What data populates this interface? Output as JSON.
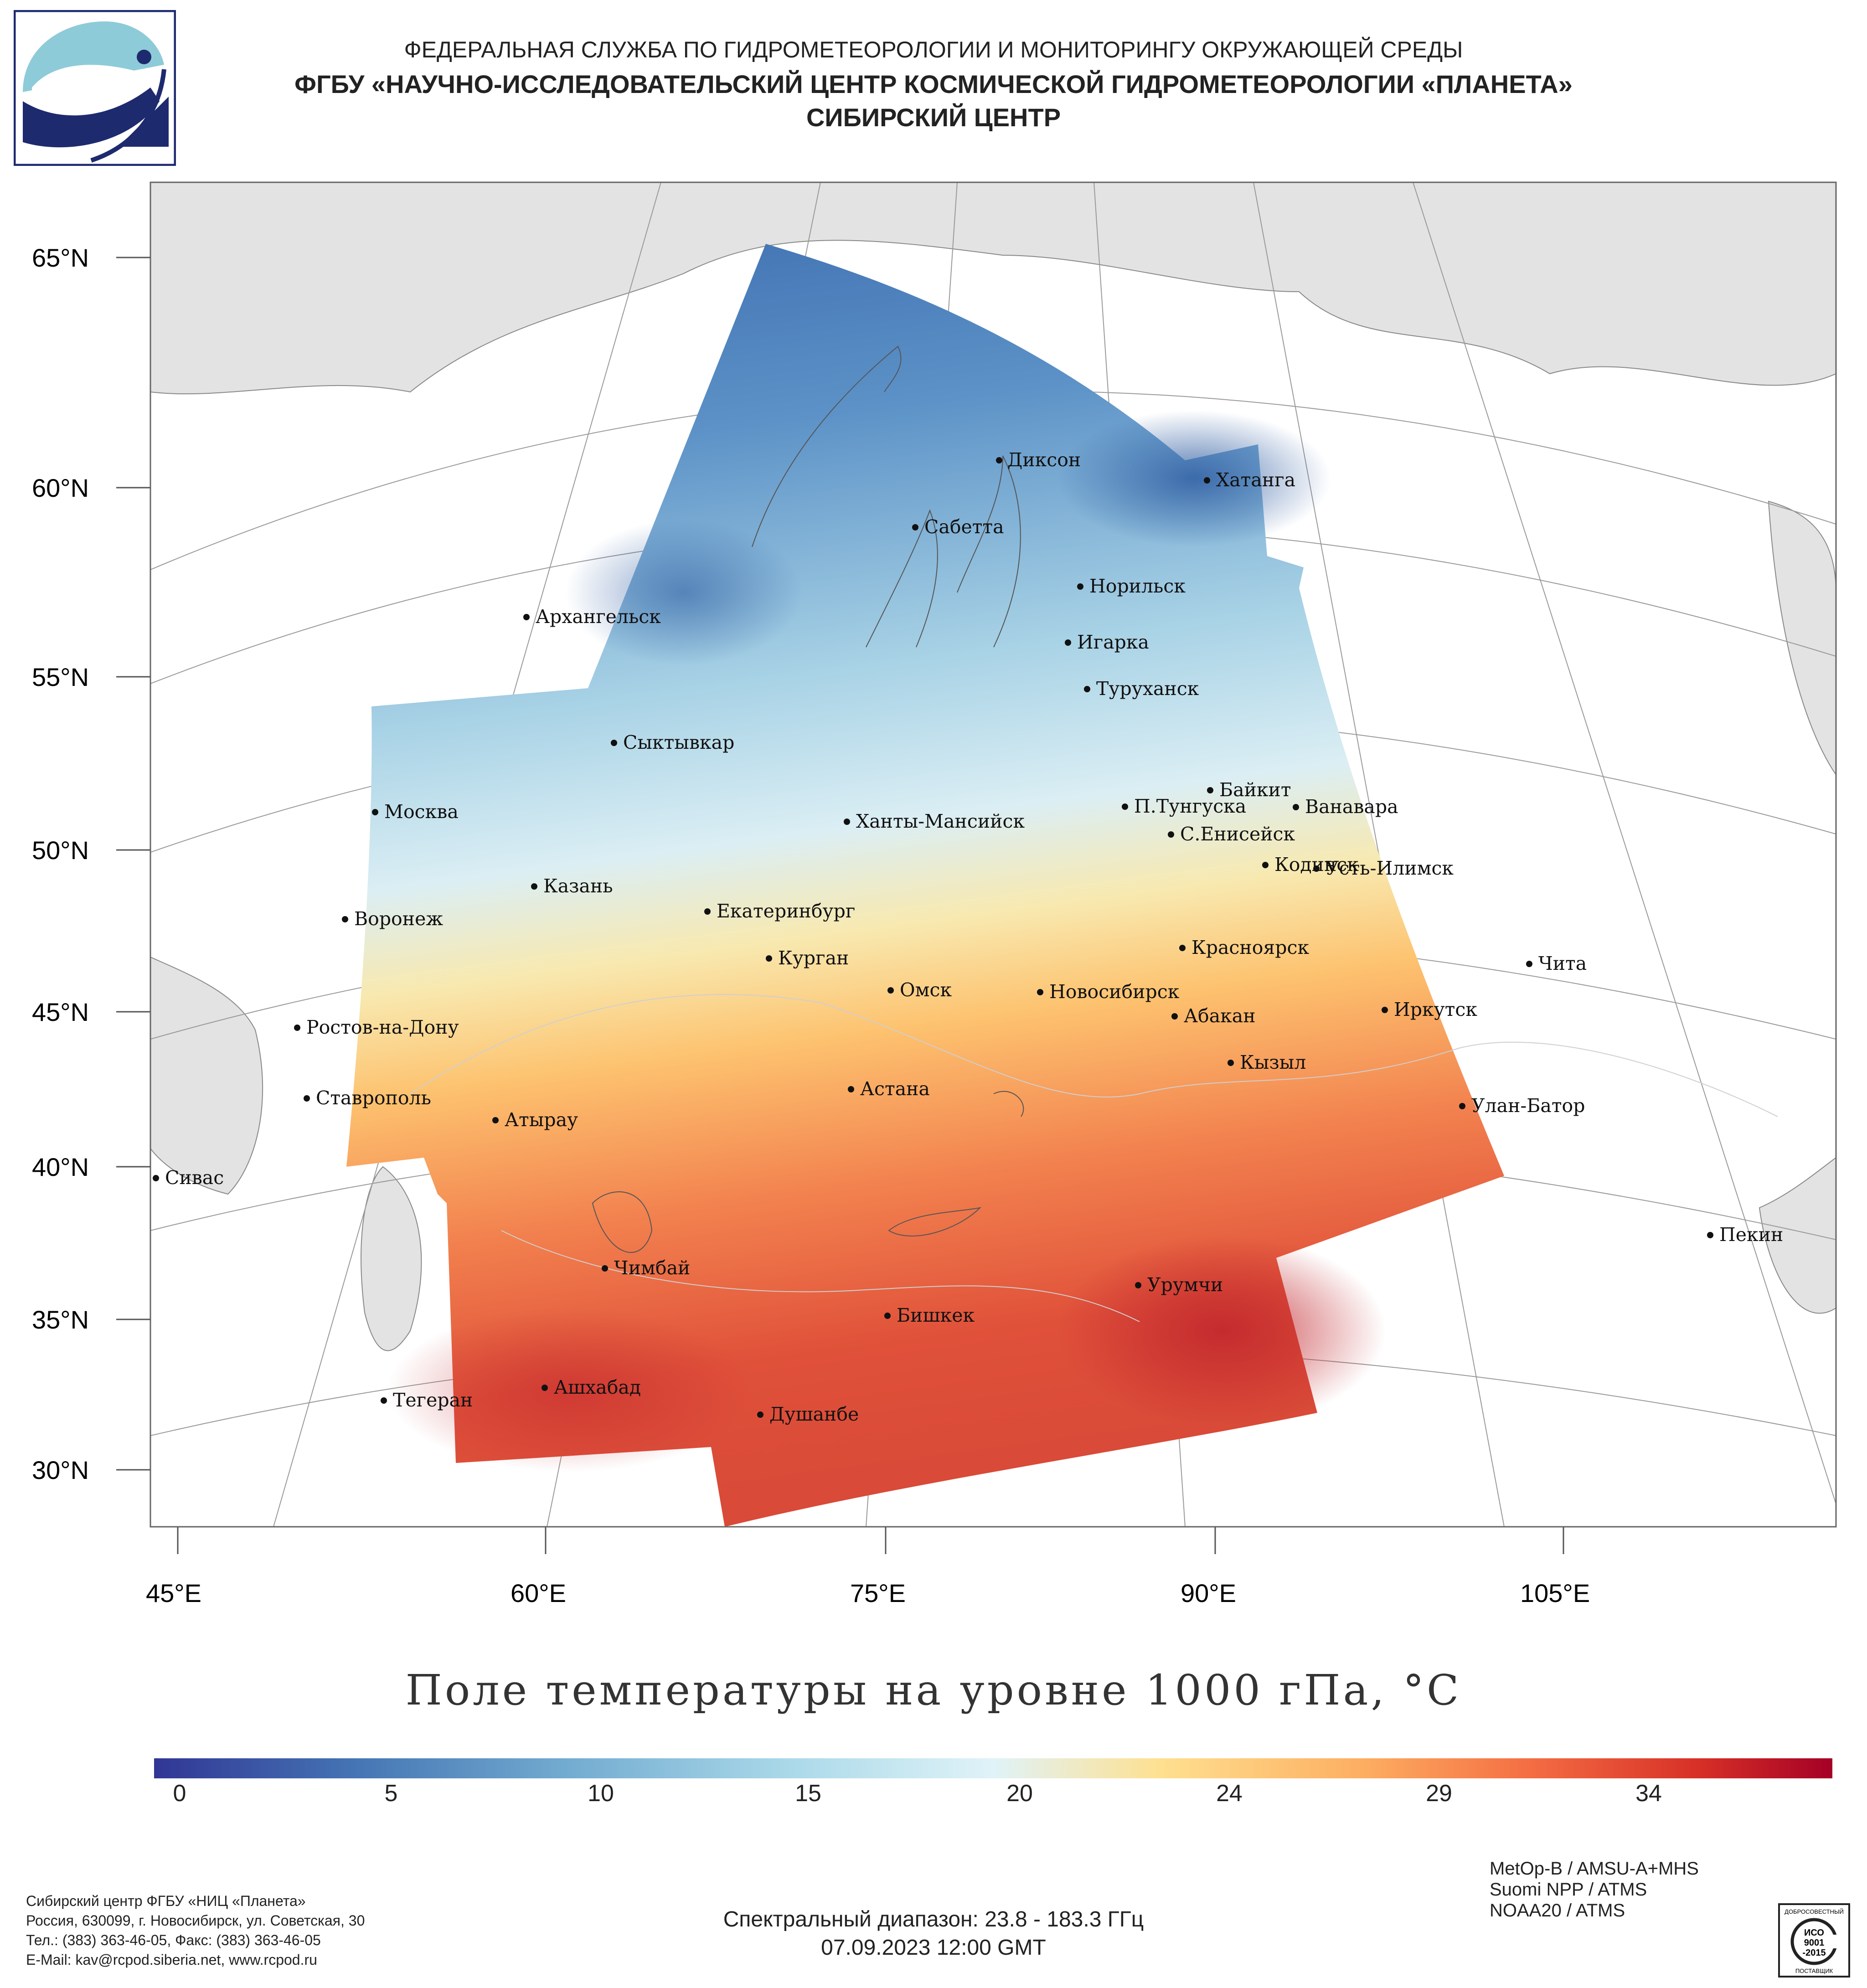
{
  "header": {
    "line1": "ФЕДЕРАЛЬНАЯ СЛУЖБА ПО ГИДРОМЕТЕОРОЛОГИИ И МОНИТОРИНГУ ОКРУЖАЮЩЕЙ СРЕДЫ",
    "line2": "ФГБУ «НАУЧНО-ИССЛЕДОВАТЕЛЬСКИЙ ЦЕНТР КОСМИЧЕСКОЙ ГИДРОМЕТЕОРОЛОГИИ «ПЛАНЕТА»",
    "line3": "СИБИРСКИЙ ЦЕНТР"
  },
  "map": {
    "latitude_labels": [
      "65°N",
      "60°N",
      "55°N",
      "50°N",
      "45°N",
      "40°N",
      "35°N",
      "30°N"
    ],
    "longitude_labels": [
      "45°E",
      "60°E",
      "75°E",
      "90°E",
      "105°E"
    ],
    "cities": [
      {
        "name": "Диксон"
      },
      {
        "name": "Хатанга"
      },
      {
        "name": "Сабетта"
      },
      {
        "name": "Норильск"
      },
      {
        "name": "Архангельск"
      },
      {
        "name": "Игарка"
      },
      {
        "name": "Туруханск"
      },
      {
        "name": "Сыктывкар"
      },
      {
        "name": "Байкит"
      },
      {
        "name": "П.Тунгуска"
      },
      {
        "name": "Ванавара"
      },
      {
        "name": "Москва"
      },
      {
        "name": "Ханты-Мансийск"
      },
      {
        "name": "С.Енисейск"
      },
      {
        "name": "Кодинск"
      },
      {
        "name": "Усть-Илимск"
      },
      {
        "name": "Казань"
      },
      {
        "name": "Екатеринбург"
      },
      {
        "name": "Воронеж"
      },
      {
        "name": "Красноярск"
      },
      {
        "name": "Курган"
      },
      {
        "name": "Чита"
      },
      {
        "name": "Омск"
      },
      {
        "name": "Новосибирск"
      },
      {
        "name": "Ростов-на-Дону"
      },
      {
        "name": "Абакан"
      },
      {
        "name": "Иркутск"
      },
      {
        "name": "Кызыл"
      },
      {
        "name": "Астана"
      },
      {
        "name": "Ставрополь"
      },
      {
        "name": "Улан-Батор"
      },
      {
        "name": "Атырау"
      },
      {
        "name": "Сивас"
      },
      {
        "name": "Пекин"
      },
      {
        "name": "Чимбай"
      },
      {
        "name": "Урумчи"
      },
      {
        "name": "Бишкек"
      },
      {
        "name": "Ашхабад"
      },
      {
        "name": "Тегеран"
      },
      {
        "name": "Душанбе"
      }
    ]
  },
  "title": "Поле температуры на уровне 1000 гПа, °С",
  "colorbar": {
    "ticks": [
      "0",
      "5",
      "10",
      "15",
      "20",
      "24",
      "29",
      "34"
    ],
    "colors": [
      "#313695",
      "#4575b4",
      "#74add1",
      "#abd9e9",
      "#e0f3f8",
      "#fee090",
      "#fdae61",
      "#f46d43",
      "#d73027",
      "#a50026"
    ]
  },
  "footer": {
    "org_lines": [
      "Сибирский центр ФГБУ «НИЦ «Планета»",
      "Россия, 630099, г. Новосибирск, ул. Советская, 30",
      "Тел.: (383) 363-46-05, Факс: (383) 363-46-05",
      "E-Mail: kav@rcpod.siberia.net, www.rcpod.ru"
    ],
    "spectral": "Спектральный диапазон: 23.8 - 183.3 ГГц",
    "datetime": "07.09.2023 12:00 GMT",
    "satellites": [
      "MetOp-B / AMSU-A+MHS",
      "Suomi NPP / ATMS",
      "NOAA20 / ATMS"
    ],
    "iso_badge": [
      "ДОБРОСОВЕСТНЫЙ",
      "ИСО",
      "9001",
      "-2015",
      "ПОСТАВЩИК"
    ]
  }
}
